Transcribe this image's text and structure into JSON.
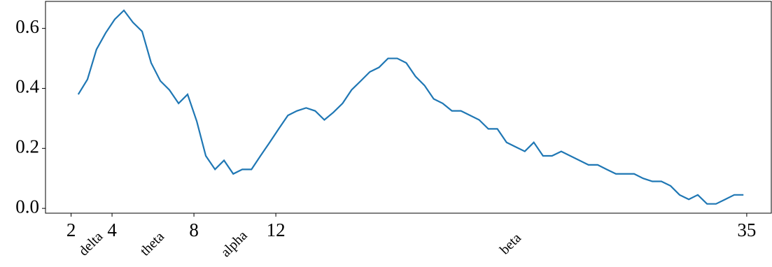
{
  "chart_data": {
    "type": "line",
    "x": [
      2.35,
      2.8,
      3.24,
      3.69,
      4.13,
      4.58,
      5.02,
      5.47,
      5.91,
      6.36,
      6.8,
      7.25,
      7.69,
      8.14,
      8.58,
      9.03,
      9.47,
      9.92,
      10.36,
      10.81,
      11.25,
      11.7,
      12.14,
      12.59,
      13.03,
      13.48,
      13.92,
      14.37,
      14.81,
      15.26,
      15.7,
      16.15,
      16.59,
      17.04,
      17.48,
      17.93,
      18.37,
      18.82,
      19.26,
      19.71,
      20.15,
      20.6,
      21.04,
      21.49,
      21.93,
      22.38,
      22.82,
      23.27,
      23.71,
      24.16,
      24.6,
      25.05,
      25.49,
      25.94,
      26.38,
      26.83,
      27.27,
      27.72,
      28.16,
      28.61,
      29.05,
      29.5,
      29.94,
      30.39,
      30.83,
      31.28,
      31.72,
      32.17,
      32.61,
      33.06,
      33.5,
      33.95,
      34.39,
      34.84
    ],
    "series": [
      {
        "color": "#1f77b4",
        "values": [
          0.38,
          0.43,
          0.53,
          0.585,
          0.63,
          0.66,
          0.62,
          0.59,
          0.485,
          0.425,
          0.395,
          0.35,
          0.38,
          0.29,
          0.175,
          0.13,
          0.16,
          0.115,
          0.13,
          0.13,
          0.175,
          0.22,
          0.265,
          0.31,
          0.325,
          0.335,
          0.325,
          0.295,
          0.32,
          0.35,
          0.395,
          0.425,
          0.455,
          0.47,
          0.5,
          0.5,
          0.485,
          0.44,
          0.41,
          0.365,
          0.35,
          0.325,
          0.325,
          0.31,
          0.295,
          0.265,
          0.265,
          0.22,
          0.205,
          0.19,
          0.22,
          0.175,
          0.175,
          0.19,
          0.175,
          0.16,
          0.145,
          0.145,
          0.13,
          0.115,
          0.115,
          0.115,
          0.1,
          0.09,
          0.09,
          0.075,
          0.045,
          0.03,
          0.045,
          0.015,
          0.015,
          0.03,
          0.045,
          0.045
        ]
      }
    ],
    "xlim": [
      0.75,
      36.2
    ],
    "xticks": [
      2,
      4,
      8,
      12,
      35
    ],
    "ylim": [
      -0.016,
      0.69
    ],
    "yticks": [
      {
        "value": 0,
        "label": "0.0"
      },
      0.2,
      0.4,
      0.6
    ],
    "band_labels": [
      {
        "label": "delta",
        "x": 3
      },
      {
        "label": "theta",
        "x": 6
      },
      {
        "label": "alpha",
        "x": 10
      },
      {
        "label": "beta",
        "x": 23.5
      }
    ],
    "grid": false
  }
}
